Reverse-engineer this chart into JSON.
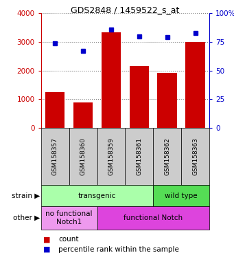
{
  "title": "GDS2848 / 1459522_s_at",
  "samples": [
    "GSM158357",
    "GSM158360",
    "GSM158359",
    "GSM158361",
    "GSM158362",
    "GSM158363"
  ],
  "counts": [
    1250,
    880,
    3330,
    2150,
    1920,
    3000
  ],
  "percentiles": [
    74,
    67,
    86,
    80,
    79,
    83
  ],
  "ylim_left": [
    0,
    4000
  ],
  "ylim_right": [
    0,
    100
  ],
  "yticks_left": [
    0,
    1000,
    2000,
    3000,
    4000
  ],
  "yticks_right": [
    0,
    25,
    50,
    75,
    100
  ],
  "bar_color": "#cc0000",
  "dot_color": "#0000cc",
  "xlim": [
    -0.5,
    5.5
  ],
  "strain_labels": [
    {
      "text": "transgenic",
      "span": [
        0,
        3
      ],
      "color": "#aaffaa"
    },
    {
      "text": "wild type",
      "span": [
        4,
        5
      ],
      "color": "#55dd55"
    }
  ],
  "other_labels": [
    {
      "text": "no functional\nNotch1",
      "span": [
        0,
        1
      ],
      "color": "#ee99ee"
    },
    {
      "text": "functional Notch",
      "span": [
        2,
        5
      ],
      "color": "#dd44dd"
    }
  ],
  "tick_color_left": "#cc0000",
  "tick_color_right": "#0000cc",
  "background_color": "#ffffff",
  "samp_box_color": "#cccccc",
  "title_fontsize": 9,
  "tick_fontsize": 7.5,
  "label_fontsize": 7.5,
  "samp_fontsize": 6.5,
  "row_fontsize": 7.5,
  "legend_fontsize": 7.5
}
